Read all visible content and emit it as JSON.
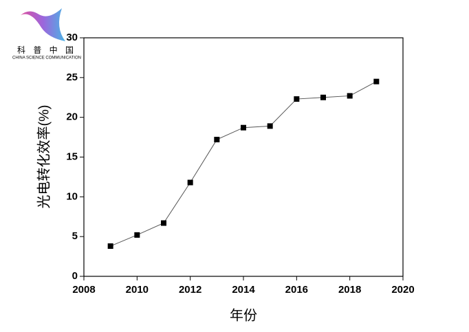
{
  "chart_data": {
    "type": "line",
    "logo_title": "科 普 中 国",
    "logo_subtitle": "CHINA SCIENCE COMMUNICATION",
    "x_label": "年份",
    "y_label": "光电转化效率(%)",
    "x": [
      2009,
      2010,
      2011,
      2012,
      2013,
      2014,
      2015,
      2016,
      2017,
      2018,
      2019
    ],
    "values": [
      3.8,
      5.2,
      6.7,
      11.8,
      17.2,
      18.7,
      18.9,
      22.3,
      22.5,
      22.7,
      24.5
    ],
    "color": "#000000",
    "xlim": [
      2008,
      2020
    ],
    "xticks": [
      2008,
      2010,
      2012,
      2014,
      2016,
      2018,
      2020
    ],
    "ylim": [
      0,
      30
    ],
    "yticks": [
      0,
      5,
      10,
      15,
      20,
      25,
      30
    ],
    "grid": false
  }
}
